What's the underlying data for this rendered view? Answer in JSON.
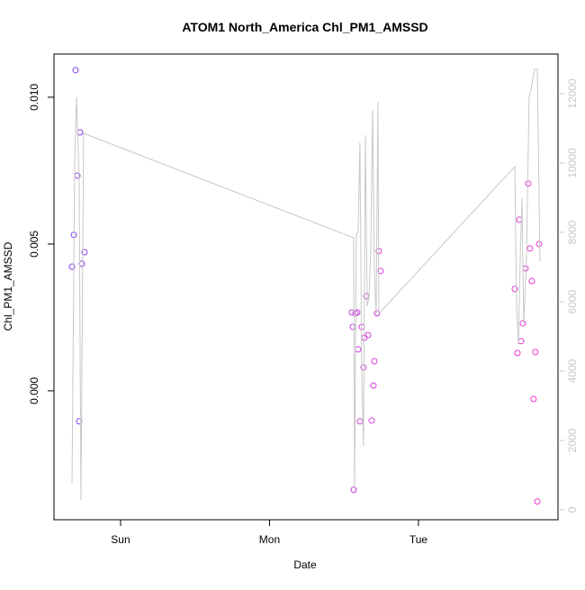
{
  "chart_data": {
    "type": "scatter",
    "title": "ATOM1 North_America Chl_PM1_AMSSD",
    "x_label": "Date",
    "y_label": "Chl_PM1_AMSSD",
    "xlim": [
      -0.447,
      2.937
    ],
    "xticks": [
      {
        "value": 0,
        "label": "Sun"
      },
      {
        "value": 1,
        "label": "Mon"
      },
      {
        "value": 2,
        "label": "Tue"
      }
    ],
    "ylim": [
      -0.00439,
      0.01147
    ],
    "yticks": [
      {
        "value": 0,
        "label": "0.000"
      },
      {
        "value": 0.005,
        "label": "0.005"
      },
      {
        "value": 0.01,
        "label": "0.010"
      }
    ],
    "y2lim": [
      -286,
      13143
    ],
    "y2ticks": [
      0,
      2000,
      4000,
      6000,
      8000,
      10000,
      12000
    ],
    "series": [
      {
        "name": "Chl_PM1_AMSSD",
        "colors": [
          "#7a3ef0",
          "#7c3ef0",
          "#7e3ef0",
          "#803eef",
          "#823eef",
          "#843eef",
          "#863eee",
          "#883eee",
          "#c33ce0",
          "#c53ce0",
          "#c63cdf",
          "#c83cdf",
          "#ca3cde",
          "#cb3cde",
          "#cd3cdd",
          "#ce3cdd",
          "#d03cdc",
          "#d13cdc",
          "#d33bdb",
          "#d43bdb",
          "#d63bda",
          "#d73bda",
          "#d93bd9",
          "#da3bd9",
          "#dc3bd8",
          "#dd3bd8",
          "#e03ad6",
          "#e13ad6",
          "#e23ad5",
          "#e33ad5",
          "#e43ad4",
          "#e53ad4",
          "#e63ad3",
          "#e73ad3",
          "#e83ad2",
          "#e93ad2",
          "#ea3ad1",
          "#eb3ad1",
          "#ec3ad0"
        ],
        "x": [
          -0.326,
          -0.314,
          -0.302,
          -0.29,
          -0.278,
          -0.272,
          -0.26,
          -0.242,
          1.553,
          1.565,
          1.559,
          1.577,
          1.589,
          1.595,
          1.607,
          1.619,
          1.631,
          1.637,
          1.65,
          1.662,
          1.686,
          1.698,
          1.704,
          1.722,
          1.734,
          1.746,
          2.647,
          2.665,
          2.677,
          2.689,
          2.701,
          2.719,
          2.737,
          2.749,
          2.761,
          2.773,
          2.785,
          2.798,
          2.81
        ],
        "values": [
          0.00423,
          0.00531,
          0.01092,
          0.00733,
          -0.00104,
          0.0088,
          0.00433,
          0.00472,
          0.00267,
          -0.00337,
          0.00218,
          0.00264,
          0.00267,
          0.00141,
          -0.00104,
          0.00218,
          0.0008,
          0.00181,
          0.00322,
          0.0019,
          -0.00101,
          0.00018,
          0.00101,
          0.00264,
          0.00476,
          0.00408,
          0.00347,
          0.00129,
          0.00583,
          0.00169,
          0.0023,
          0.00417,
          0.00706,
          0.00485,
          0.00374,
          -0.00028,
          0.00132,
          -0.00377,
          0.005
        ]
      },
      {
        "type": "line",
        "axis": "y2",
        "color": "#c8c8c8",
        "x": [
          -0.326,
          -0.308,
          -0.296,
          -0.278,
          -0.266,
          -0.248,
          1.565,
          1.571,
          1.583,
          1.595,
          1.607,
          1.619,
          1.631,
          1.644,
          1.656,
          1.668,
          1.68,
          1.692,
          1.704,
          1.716,
          1.728,
          1.734,
          1.746,
          2.647,
          2.659,
          2.671,
          2.683,
          2.695,
          2.707,
          2.725,
          2.743,
          2.755,
          2.779,
          2.798,
          2.816
        ],
        "values": [
          753,
          10026,
          11896,
          9506,
          286,
          10857,
          7844,
          545,
          7948,
          8000,
          10597,
          4052,
          1844,
          10805,
          5870,
          6130,
          7429,
          11532,
          6909,
          5610,
          11766,
          5662,
          5714,
          9896,
          5870,
          4779,
          7169,
          8987,
          5351,
          7169,
          11922,
          12104,
          12701,
          12701,
          7169
        ]
      }
    ]
  }
}
